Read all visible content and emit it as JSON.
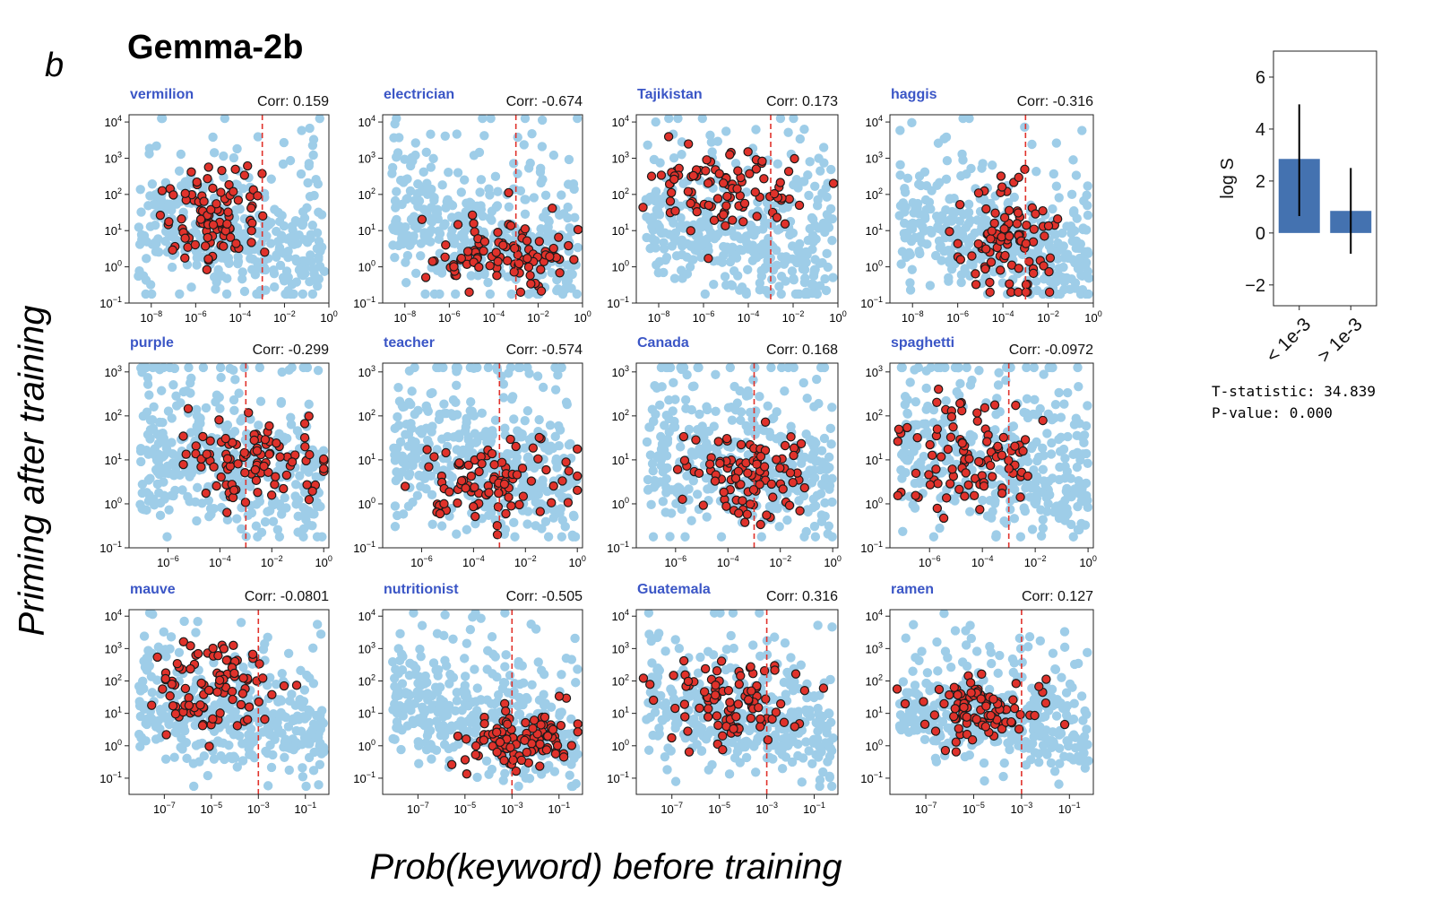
{
  "figure": {
    "panel_letter": "b",
    "title": "Gemma-2b",
    "ylabel": "Priming after training",
    "xlabel": "Prob(keyword) before training"
  },
  "colors": {
    "background_points": "#9ecde8",
    "keyword_points": "#e0322b",
    "keyword_edge": "#1a1a1a",
    "threshold_line": "#e0322b",
    "bar": "#4472b0",
    "label_blue": "#3b56c6"
  },
  "stats": {
    "t_statistic": "T-statistic: 34.839",
    "p_value": "P-value: 0.000"
  },
  "chart_data": [
    {
      "type": "scatter",
      "keyword": "vermilion",
      "corr_label": "Corr: 0.159",
      "xscale": "log",
      "yscale": "log",
      "xlim_exp": [
        -9,
        0
      ],
      "ylim_exp": [
        -1,
        4.2
      ],
      "xticks_exp": [
        -8,
        -6,
        -4,
        -2,
        0
      ],
      "yticks_exp": [
        -1,
        0,
        1,
        2,
        3,
        4
      ],
      "threshold_exp": -3,
      "red_center": [
        -5.3,
        1.5
      ],
      "red_spread": [
        1.1,
        0.6
      ]
    },
    {
      "type": "scatter",
      "keyword": "electrician",
      "corr_label": "Corr: -0.674",
      "xscale": "log",
      "yscale": "log",
      "xlim_exp": [
        -9,
        0
      ],
      "ylim_exp": [
        -1,
        4.2
      ],
      "xticks_exp": [
        -8,
        -6,
        -4,
        -2,
        0
      ],
      "yticks_exp": [
        -1,
        0,
        1,
        2,
        3,
        4
      ],
      "threshold_exp": -3,
      "red_center": [
        -3.5,
        0.3
      ],
      "red_spread": [
        1.8,
        0.5
      ]
    },
    {
      "type": "scatter",
      "keyword": "Tajikistan",
      "corr_label": "Corr: 0.173",
      "xscale": "log",
      "yscale": "log",
      "xlim_exp": [
        -9,
        0
      ],
      "ylim_exp": [
        -1,
        4.2
      ],
      "xticks_exp": [
        -8,
        -6,
        -4,
        -2,
        0
      ],
      "yticks_exp": [
        -1,
        0,
        1,
        2,
        3,
        4
      ],
      "threshold_exp": -3,
      "red_center": [
        -5.0,
        2.2
      ],
      "red_spread": [
        1.6,
        0.6
      ]
    },
    {
      "type": "scatter",
      "keyword": "haggis",
      "corr_label": "Corr: -0.316",
      "xscale": "log",
      "yscale": "log",
      "xlim_exp": [
        -9,
        0
      ],
      "ylim_exp": [
        -1,
        4.2
      ],
      "xticks_exp": [
        -8,
        -6,
        -4,
        -2,
        0
      ],
      "yticks_exp": [
        -1,
        0,
        1,
        2,
        3,
        4
      ],
      "threshold_exp": -3,
      "red_center": [
        -3.8,
        0.8
      ],
      "red_spread": [
        0.9,
        0.8
      ]
    },
    {
      "type": "scatter",
      "keyword": "purple",
      "corr_label": "Corr: -0.299",
      "xscale": "log",
      "yscale": "log",
      "xlim_exp": [
        -7.5,
        0.2
      ],
      "ylim_exp": [
        -1,
        3.2
      ],
      "xticks_exp": [
        -6,
        -4,
        -2,
        0
      ],
      "yticks_exp": [
        -1,
        0,
        1,
        2,
        3
      ],
      "threshold_exp": -3,
      "red_center": [
        -2.5,
        0.9
      ],
      "red_spread": [
        1.4,
        0.45
      ]
    },
    {
      "type": "scatter",
      "keyword": "teacher",
      "corr_label": "Corr: -0.574",
      "xscale": "log",
      "yscale": "log",
      "xlim_exp": [
        -7.5,
        0.2
      ],
      "ylim_exp": [
        -1,
        3.2
      ],
      "xticks_exp": [
        -6,
        -4,
        -2,
        0
      ],
      "yticks_exp": [
        -1,
        0,
        1,
        2,
        3
      ],
      "threshold_exp": -3,
      "red_center": [
        -3.0,
        0.5
      ],
      "red_spread": [
        1.6,
        0.5
      ]
    },
    {
      "type": "scatter",
      "keyword": "Canada",
      "corr_label": "Corr: 0.168",
      "xscale": "log",
      "yscale": "log",
      "xlim_exp": [
        -7.5,
        0.2
      ],
      "ylim_exp": [
        -1,
        3.2
      ],
      "xticks_exp": [
        -6,
        -4,
        -2,
        0
      ],
      "yticks_exp": [
        -1,
        0,
        1,
        2,
        3
      ],
      "threshold_exp": -3,
      "red_center": [
        -3.3,
        0.7
      ],
      "red_spread": [
        1.3,
        0.5
      ]
    },
    {
      "type": "scatter",
      "keyword": "spaghetti",
      "corr_label": "Corr: -0.0972",
      "xscale": "log",
      "yscale": "log",
      "xlim_exp": [
        -7.5,
        0.2
      ],
      "ylim_exp": [
        -1,
        3.2
      ],
      "xticks_exp": [
        -6,
        -4,
        -2,
        0
      ],
      "yticks_exp": [
        -1,
        0,
        1,
        2,
        3
      ],
      "threshold_exp": -3,
      "red_center": [
        -4.5,
        1.2
      ],
      "red_spread": [
        1.5,
        0.6
      ]
    },
    {
      "type": "scatter",
      "keyword": "mauve",
      "corr_label": "Corr: -0.0801",
      "xscale": "log",
      "yscale": "log",
      "xlim_exp": [
        -8.5,
        0
      ],
      "ylim_exp": [
        -1.5,
        4.2
      ],
      "xticks_exp": [
        -7,
        -5,
        -3,
        -1
      ],
      "yticks_exp": [
        -1,
        0,
        1,
        2,
        3,
        4
      ],
      "threshold_exp": -3,
      "red_center": [
        -4.8,
        1.9
      ],
      "red_spread": [
        1.3,
        0.7
      ]
    },
    {
      "type": "scatter",
      "keyword": "nutritionist",
      "corr_label": "Corr: -0.505",
      "xscale": "log",
      "yscale": "log",
      "xlim_exp": [
        -8.5,
        0
      ],
      "ylim_exp": [
        -1.5,
        4.2
      ],
      "xticks_exp": [
        -7,
        -5,
        -3,
        -1
      ],
      "yticks_exp": [
        -1,
        0,
        1,
        2,
        3,
        4
      ],
      "threshold_exp": -3,
      "red_center": [
        -2.6,
        0.2
      ],
      "red_spread": [
        1.4,
        0.5
      ]
    },
    {
      "type": "scatter",
      "keyword": "Guatemala",
      "corr_label": "Corr: 0.316",
      "xscale": "log",
      "yscale": "log",
      "xlim_exp": [
        -8.5,
        0
      ],
      "ylim_exp": [
        -1.5,
        4.2
      ],
      "xticks_exp": [
        -7,
        -5,
        -3,
        -1
      ],
      "yticks_exp": [
        -1,
        0,
        1,
        2,
        3,
        4
      ],
      "threshold_exp": -3,
      "red_center": [
        -4.5,
        1.3
      ],
      "red_spread": [
        1.4,
        0.6
      ]
    },
    {
      "type": "scatter",
      "keyword": "ramen",
      "corr_label": "Corr: 0.127",
      "xscale": "log",
      "yscale": "log",
      "xlim_exp": [
        -8.5,
        0
      ],
      "ylim_exp": [
        -1.5,
        4.2
      ],
      "xticks_exp": [
        -7,
        -5,
        -3,
        -1
      ],
      "yticks_exp": [
        -1,
        0,
        1,
        2,
        3,
        4
      ],
      "threshold_exp": -3,
      "red_center": [
        -4.6,
        1.1
      ],
      "red_spread": [
        1.3,
        0.5
      ]
    },
    {
      "type": "bar",
      "categories": [
        "< 1e-3",
        "> 1e-3"
      ],
      "values": [
        2.85,
        0.85
      ],
      "error_low": [
        0.65,
        -0.8
      ],
      "error_high": [
        4.95,
        2.5
      ],
      "ylabel": "log S",
      "ylim": [
        -2.8,
        7
      ],
      "yticks": [
        -2,
        0,
        2,
        4,
        6
      ]
    }
  ]
}
